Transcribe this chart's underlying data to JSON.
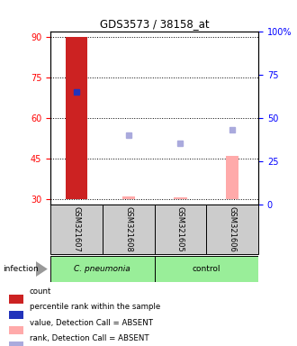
{
  "title": "GDS3573 / 38158_at",
  "samples": [
    "GSM321607",
    "GSM321608",
    "GSM321605",
    "GSM321606"
  ],
  "ylim_left": [
    28,
    92
  ],
  "ylim_right": [
    0,
    100
  ],
  "yticks_left": [
    30,
    45,
    60,
    75,
    90
  ],
  "yticks_right": [
    0,
    25,
    50,
    75,
    100
  ],
  "ytick_labels_right": [
    "0",
    "25",
    "50",
    "75",
    "100%"
  ],
  "bar_color_count": "#cc2222",
  "bar_color_value": "#ffaaaa",
  "dot_color_percentile": "#2233bb",
  "dot_color_rank_absent": "#aaaadd",
  "count_values": [
    90,
    null,
    null,
    null
  ],
  "count_bar_base": 30,
  "value_absent": [
    null,
    31,
    30.5,
    46
  ],
  "rank_absent_pct": [
    null,
    40,
    35,
    43
  ],
  "percentile_present_pct": [
    65,
    null,
    null,
    null
  ],
  "sample_bg_color": "#cccccc",
  "group1_color": "#99ee99",
  "group2_color": "#99ee99",
  "legend_items": [
    {
      "color": "#cc2222",
      "label": "count"
    },
    {
      "color": "#2233bb",
      "label": "percentile rank within the sample"
    },
    {
      "color": "#ffaaaa",
      "label": "value, Detection Call = ABSENT"
    },
    {
      "color": "#aaaadd",
      "label": "rank, Detection Call = ABSENT"
    }
  ]
}
